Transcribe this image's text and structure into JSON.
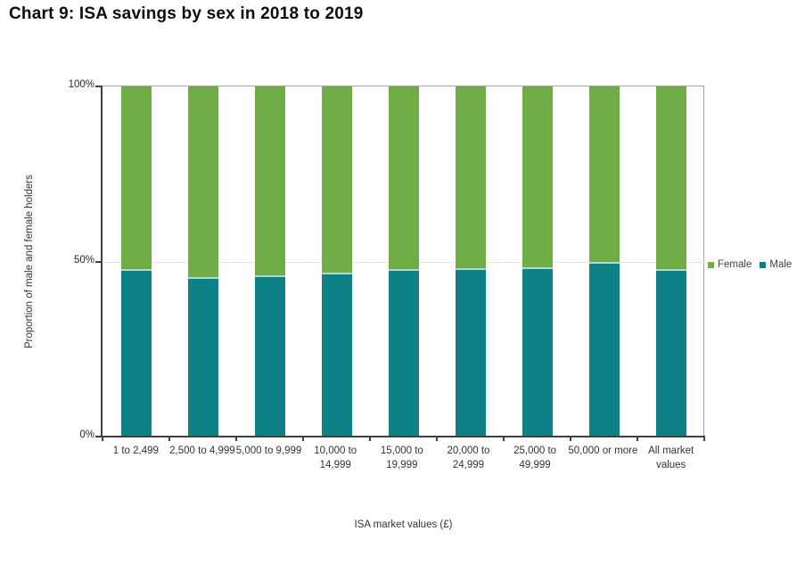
{
  "header": {
    "title": "Chart 9: ISA savings by sex in 2018 to 2019"
  },
  "chart_data": {
    "type": "bar",
    "stacked": true,
    "orientation": "vertical",
    "title": "Chart 9: ISA savings by sex in 2018 to 2019",
    "xlabel": "ISA market values (£)",
    "ylabel": "Proportion of male and female holders",
    "ylim": [
      0,
      100
    ],
    "y_ticks": [
      {
        "label": "0%",
        "value": 0
      },
      {
        "label": "50%",
        "value": 50
      },
      {
        "label": "100%",
        "value": 100
      }
    ],
    "gridlines": [
      50
    ],
    "categories": [
      "1 to 2,499",
      "2,500 to 4,999",
      "5,000 to 9,999",
      "10,000 to\n14,999",
      "15,000 to\n19,999",
      "20,000 to\n24,999",
      "25,000 to\n49,999",
      "50,000 or more",
      "All market\nvalues"
    ],
    "series": [
      {
        "name": "Male",
        "color": "#0e8186",
        "values": [
          47.6,
          45.3,
          46.0,
          46.6,
          47.7,
          47.9,
          48.3,
          49.8,
          47.8
        ]
      },
      {
        "name": "Female",
        "color": "#70ad47",
        "values": [
          52.4,
          54.7,
          54.0,
          53.4,
          52.3,
          52.1,
          51.7,
          50.2,
          52.2
        ]
      }
    ],
    "legend": {
      "position": "right",
      "items": [
        {
          "label": "Female",
          "color": "#70ad47"
        },
        {
          "label": "Male",
          "color": "#0e8186"
        }
      ]
    },
    "patterned_category_index": 8,
    "pattern_note": "All market values bar drawn with dotted fill"
  }
}
